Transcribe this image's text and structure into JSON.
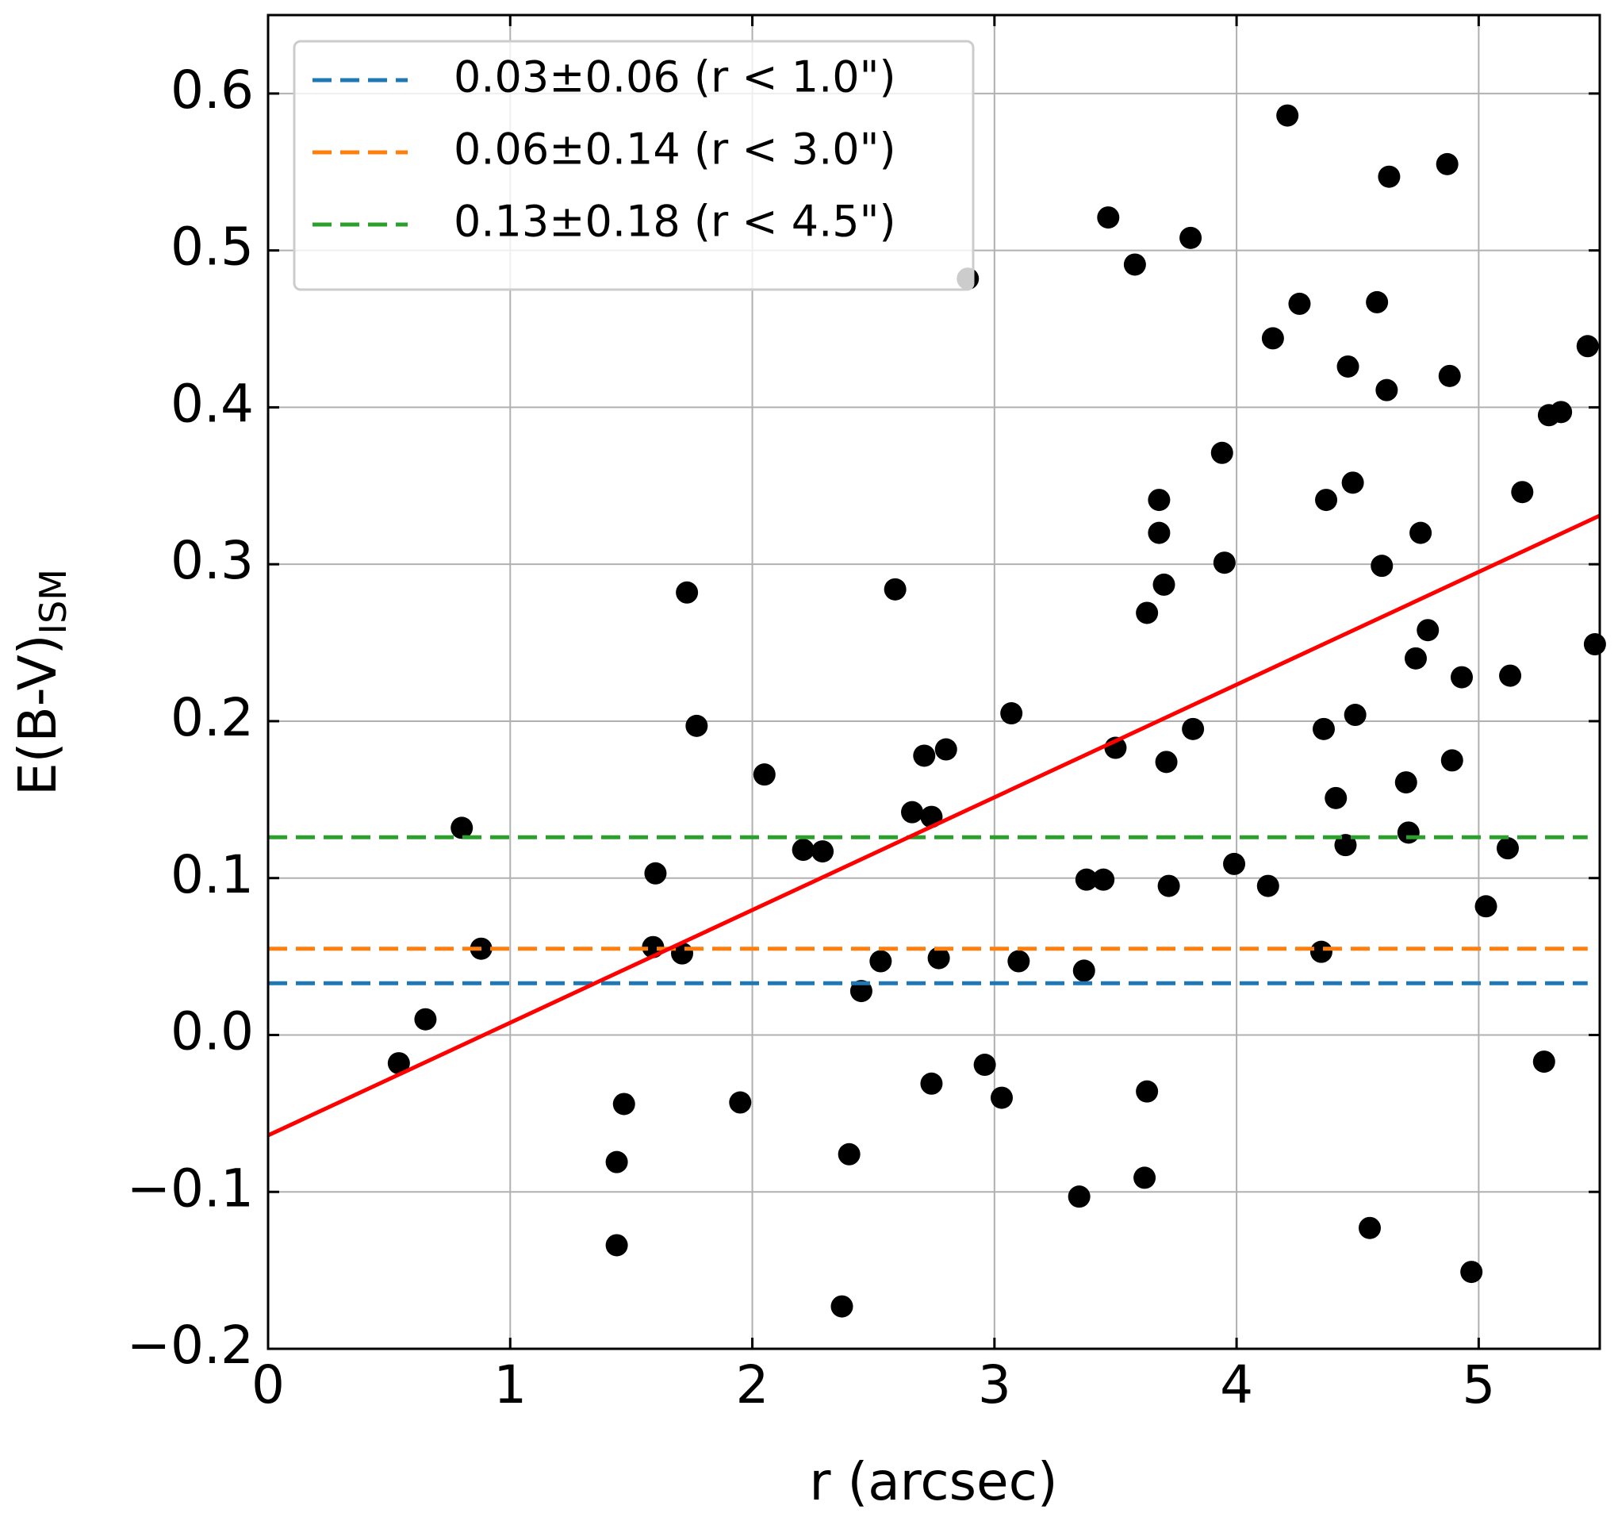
{
  "chart_data": {
    "type": "scatter",
    "xlabel": "r (arcsec)",
    "ylabel": "E(B-V)",
    "ylabel_sub": "ISM",
    "xlim": [
      0,
      5.5
    ],
    "ylim": [
      -0.2,
      0.65
    ],
    "xticks": [
      0,
      1,
      2,
      3,
      4,
      5
    ],
    "yticks": [
      {
        "value": -0.2,
        "label": "−0.2"
      },
      {
        "value": -0.1,
        "label": "−0.1"
      },
      {
        "value": 0.0,
        "label": "0.0"
      },
      0.1,
      0.2,
      0.3,
      0.4,
      0.5,
      0.6
    ],
    "grid": true,
    "legend": "upper left",
    "series": [
      {
        "kind": "points",
        "color": "#000000",
        "x": [
          0.54,
          0.65,
          0.8,
          0.88,
          1.44,
          1.44,
          1.47,
          1.6,
          1.59,
          1.71,
          1.73,
          1.77,
          1.95,
          2.05,
          2.21,
          2.29,
          2.37,
          2.4,
          2.45,
          2.53,
          2.59,
          2.66,
          2.71,
          2.74,
          2.74,
          2.77,
          2.8,
          2.89,
          2.96,
          3.03,
          3.07,
          3.1,
          3.35,
          3.37,
          3.38,
          3.45,
          3.47,
          3.5,
          3.58,
          3.62,
          3.63,
          3.63,
          3.68,
          3.68,
          3.7,
          3.71,
          3.72,
          3.81,
          3.82,
          3.94,
          3.95,
          3.99,
          4.13,
          4.15,
          4.21,
          4.26,
          4.35,
          4.36,
          4.37,
          4.41,
          4.45,
          4.46,
          4.48,
          4.49,
          4.55,
          4.58,
          4.6,
          4.62,
          4.63,
          4.7,
          4.71,
          4.74,
          4.76,
          4.79,
          4.87,
          4.88,
          4.89,
          4.93,
          4.97,
          5.03,
          5.12,
          5.13,
          5.18,
          5.27,
          5.29,
          5.34,
          5.45,
          5.48
        ],
        "values": [
          -0.018,
          0.01,
          0.132,
          0.055,
          -0.134,
          -0.081,
          -0.044,
          0.103,
          0.056,
          0.052,
          0.282,
          0.197,
          -0.043,
          0.166,
          0.118,
          0.117,
          -0.173,
          -0.076,
          0.028,
          0.047,
          0.284,
          0.142,
          0.178,
          -0.031,
          0.139,
          0.049,
          0.182,
          0.482,
          -0.019,
          -0.04,
          0.205,
          0.047,
          -0.103,
          0.041,
          0.099,
          0.099,
          0.521,
          0.183,
          0.491,
          -0.091,
          -0.036,
          0.269,
          0.341,
          0.32,
          0.287,
          0.174,
          0.095,
          0.508,
          0.195,
          0.371,
          0.301,
          0.109,
          0.095,
          0.444,
          0.586,
          0.466,
          0.053,
          0.195,
          0.341,
          0.151,
          0.121,
          0.426,
          0.352,
          0.204,
          -0.123,
          0.467,
          0.299,
          0.411,
          0.547,
          0.161,
          0.129,
          0.24,
          0.32,
          0.258,
          0.555,
          0.42,
          0.175,
          0.228,
          -0.151,
          0.082,
          0.119,
          0.229,
          0.346,
          -0.017,
          0.395,
          0.397,
          0.439,
          0.249
        ]
      },
      {
        "kind": "dashed",
        "name": "0.03±0.06 (r < 1.0\")",
        "color": "#1f77b4",
        "x": [
          0,
          5.45
        ],
        "values": [
          0.033,
          0.033
        ]
      },
      {
        "kind": "dashed",
        "name": "0.06±0.14 (r < 3.0\")",
        "color": "#ff7f0e",
        "x": [
          0,
          5.45
        ],
        "values": [
          0.055,
          0.055
        ]
      },
      {
        "kind": "dashed",
        "name": "0.13±0.18 (r < 4.5\")",
        "color": "#2ca02c",
        "x": [
          0,
          5.45
        ],
        "values": [
          0.126,
          0.126
        ]
      },
      {
        "kind": "solid",
        "color": "#ff0000",
        "x": [
          0,
          5.5
        ],
        "values": [
          -0.064,
          0.331
        ]
      }
    ]
  }
}
